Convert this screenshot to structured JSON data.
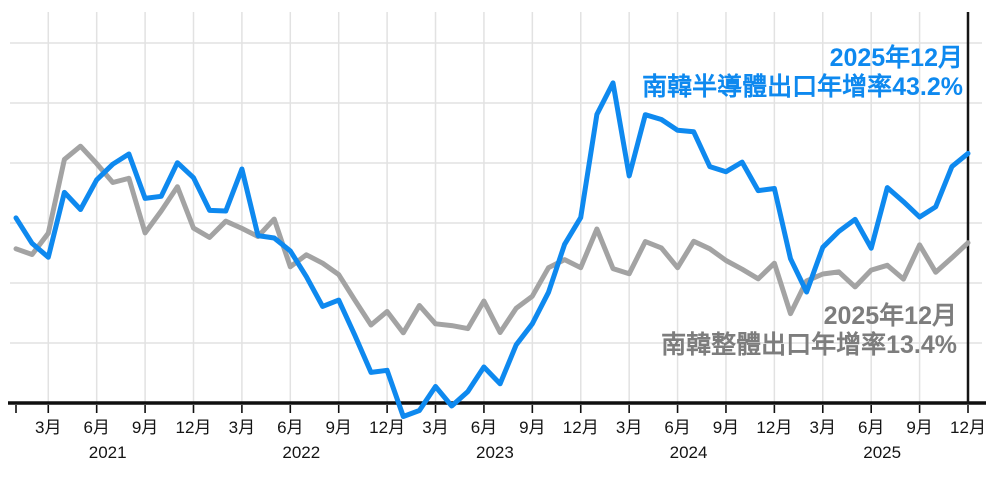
{
  "chart_data": {
    "type": "line",
    "title": "",
    "x_unit": "month",
    "x_range": [
      "2021-01",
      "2025-12"
    ],
    "grid": true,
    "y_axis_labels_visible": false,
    "y_gridline_values": [
      80,
      60,
      40,
      20,
      0,
      -20
    ],
    "x_axis_baseline_value": -40,
    "series": [
      {
        "name": "南韓整體出口年增率",
        "color": "#a3a3a3",
        "values": [
          11.4,
          9.5,
          16.6,
          41.2,
          45.6,
          39.8,
          33.5,
          34.9,
          16.7,
          24.0,
          32.1,
          18.3,
          15.2,
          20.6,
          18.2,
          15.5,
          21.3,
          5.4,
          9.4,
          6.6,
          2.8,
          -5.7,
          -14.0,
          -9.5,
          -16.6,
          -7.5,
          -13.6,
          -14.2,
          -15.2,
          -6.0,
          -16.5,
          -8.4,
          -4.4,
          5.1,
          7.8,
          5.1,
          18.0,
          4.8,
          3.1,
          13.8,
          11.7,
          5.1,
          13.9,
          11.4,
          7.5,
          4.6,
          1.4,
          6.6,
          -10.2,
          0.7,
          3.0,
          3.7,
          -1.3,
          4.3,
          5.9,
          1.3,
          12.7,
          3.6,
          8.4,
          13.4
        ]
      },
      {
        "name": "南韓半導體出口年增率",
        "color": "#0e89ef",
        "values": [
          21.7,
          13.2,
          8.6,
          30.2,
          24.5,
          34.4,
          39.6,
          43.0,
          28.2,
          28.9,
          40.1,
          35.1,
          24.2,
          24.0,
          38.0,
          15.8,
          15.0,
          10.7,
          2.1,
          -7.8,
          -5.7,
          -17.4,
          -29.8,
          -29.1,
          -44.5,
          -42.5,
          -34.5,
          -41.0,
          -36.2,
          -28.0,
          -33.6,
          -20.6,
          -13.6,
          -3.1,
          12.9,
          21.8,
          56.2,
          66.7,
          35.7,
          56.1,
          54.5,
          50.9,
          50.4,
          38.8,
          37.1,
          40.3,
          30.8,
          31.5,
          8.1,
          -3.0,
          11.9,
          17.2,
          21.2,
          11.6,
          31.8,
          27.1,
          22.0,
          25.4,
          38.8,
          43.2
        ]
      }
    ],
    "x_tick_month_labels": [
      "3月",
      "6月",
      "9月",
      "12月",
      "3月",
      "6月",
      "9月",
      "12月",
      "3月",
      "6月",
      "9月",
      "12月",
      "3月",
      "6月",
      "9月",
      "12月",
      "3月",
      "6月",
      "9月",
      "12月"
    ],
    "x_year_labels": [
      "2021",
      "2022",
      "2023",
      "2024",
      "2025"
    ],
    "reference_line_x": "2025-12",
    "legend_position": "none"
  },
  "annotations": {
    "semiconductor": {
      "line1": "2025年12月",
      "line2": "南韓半導體出口年增率43.2%",
      "color": "#0e89ef"
    },
    "total": {
      "line1": "2025年12月",
      "line2": "南韓整體出口年增率13.4%",
      "color": "#7d7d7d"
    }
  },
  "colors": {
    "semiconductor_line": "#0e89ef",
    "total_line": "#a3a3a3",
    "gridline": "#e2e2e2",
    "axis": "#0f0f0f",
    "reference_line": "#151515",
    "label_text": "#141414"
  }
}
